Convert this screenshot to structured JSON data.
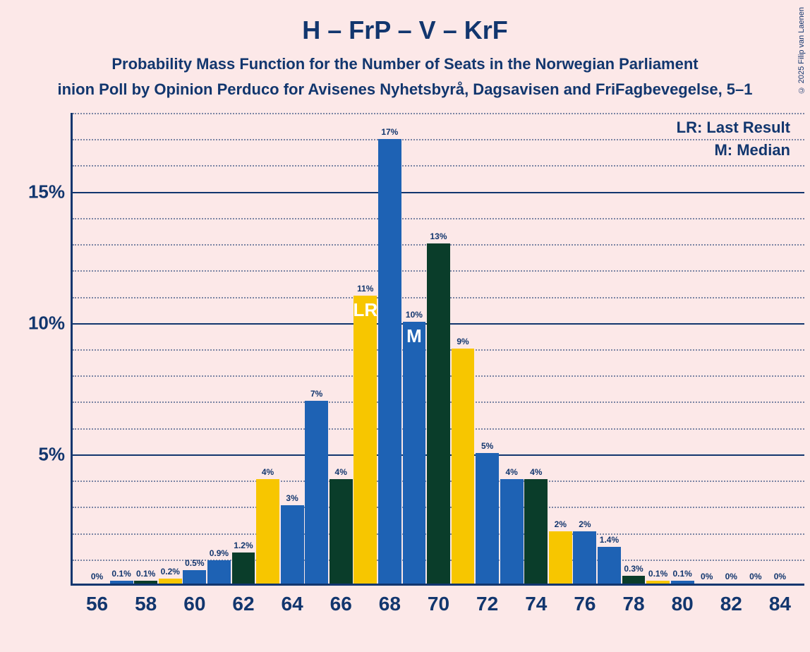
{
  "copyright": "© 2025 Filip van Laenen",
  "title": "H – FrP – V – KrF",
  "subtitle1": "Probability Mass Function for the Number of Seats in the Norwegian Parliament",
  "subtitle2": "inion Poll by Opinion Perduco for Avisenes Nyhetsbyrå, Dagsavisen and FriFagbevegelse, 5–1",
  "legend": {
    "lr": "LR: Last Result",
    "m": "M: Median"
  },
  "chart": {
    "type": "bar",
    "background_color": "#fce8e8",
    "axis_color": "#12366e",
    "y": {
      "min": 0,
      "max": 18,
      "major_step": 5,
      "minor_step": 1,
      "labels": [
        {
          "v": 5,
          "text": "5%"
        },
        {
          "v": 10,
          "text": "10%"
        },
        {
          "v": 15,
          "text": "15%"
        }
      ]
    },
    "x": {
      "labels": [
        "56",
        "58",
        "60",
        "62",
        "64",
        "66",
        "68",
        "70",
        "72",
        "74",
        "76",
        "78",
        "80",
        "82",
        "84"
      ],
      "positions": [
        56,
        58,
        60,
        62,
        64,
        66,
        68,
        70,
        72,
        74,
        76,
        78,
        80,
        82,
        84
      ],
      "min": 55,
      "max": 85
    },
    "colors": {
      "yellow": "#f7c600",
      "blue": "#1e62b4",
      "darkgreen": "#0a3d2a"
    },
    "bar_width_units": 0.95,
    "bars": [
      {
        "x": 56,
        "v": 0,
        "label": "0%",
        "color": "yellow"
      },
      {
        "x": 57,
        "v": 0.1,
        "label": "0.1%",
        "color": "blue"
      },
      {
        "x": 58,
        "v": 0.1,
        "label": "0.1%",
        "color": "darkgreen"
      },
      {
        "x": 59,
        "v": 0.2,
        "label": "0.2%",
        "color": "yellow"
      },
      {
        "x": 60,
        "v": 0.5,
        "label": "0.5%",
        "color": "blue"
      },
      {
        "x": 61,
        "v": 0.9,
        "label": "0.9%",
        "color": "blue"
      },
      {
        "x": 62,
        "v": 1.2,
        "label": "1.2%",
        "color": "darkgreen"
      },
      {
        "x": 63,
        "v": 4,
        "label": "4%",
        "color": "yellow"
      },
      {
        "x": 64,
        "v": 3,
        "label": "3%",
        "color": "blue"
      },
      {
        "x": 65,
        "v": 7,
        "label": "7%",
        "color": "blue"
      },
      {
        "x": 66,
        "v": 4,
        "label": "4%",
        "color": "darkgreen"
      },
      {
        "x": 67,
        "v": 11,
        "label": "11%",
        "color": "yellow",
        "annot": "LR",
        "annot_below": true
      },
      {
        "x": 68,
        "v": 17,
        "label": "17%",
        "color": "blue"
      },
      {
        "x": 69,
        "v": 10,
        "label": "10%",
        "color": "blue",
        "annot": "M",
        "annot_below": true
      },
      {
        "x": 70,
        "v": 13,
        "label": "13%",
        "color": "darkgreen"
      },
      {
        "x": 71,
        "v": 9,
        "label": "9%",
        "color": "yellow"
      },
      {
        "x": 72,
        "v": 5,
        "label": "5%",
        "color": "blue"
      },
      {
        "x": 73,
        "v": 4,
        "label": "4%",
        "color": "blue"
      },
      {
        "x": 74,
        "v": 4,
        "label": "4%",
        "color": "darkgreen"
      },
      {
        "x": 75,
        "v": 2,
        "label": "2%",
        "color": "yellow"
      },
      {
        "x": 76,
        "v": 2,
        "label": "2%",
        "color": "blue"
      },
      {
        "x": 77,
        "v": 1.4,
        "label": "1.4%",
        "color": "blue"
      },
      {
        "x": 78,
        "v": 0.3,
        "label": "0.3%",
        "color": "darkgreen"
      },
      {
        "x": 79,
        "v": 0.1,
        "label": "0.1%",
        "color": "yellow"
      },
      {
        "x": 80,
        "v": 0.1,
        "label": "0.1%",
        "color": "blue"
      },
      {
        "x": 81,
        "v": 0,
        "label": "0%",
        "color": "blue"
      },
      {
        "x": 82,
        "v": 0,
        "label": "0%",
        "color": "darkgreen"
      },
      {
        "x": 83,
        "v": 0,
        "label": "0%",
        "color": "yellow"
      },
      {
        "x": 84,
        "v": 0,
        "label": "0%",
        "color": "blue"
      }
    ]
  }
}
